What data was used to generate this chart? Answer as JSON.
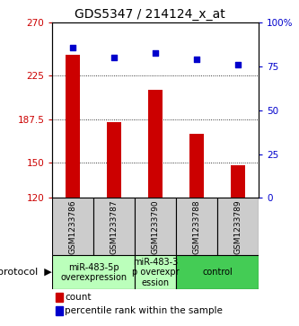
{
  "title": "GDS5347 / 214124_x_at",
  "samples": [
    "GSM1233786",
    "GSM1233787",
    "GSM1233790",
    "GSM1233788",
    "GSM1233789"
  ],
  "counts": [
    243,
    185,
    213,
    175,
    148
  ],
  "percentiles": [
    86,
    80,
    83,
    79,
    76
  ],
  "y_min": 120,
  "y_max": 270,
  "y_ticks": [
    120,
    150,
    187.5,
    225,
    270
  ],
  "y_tick_labels": [
    "120",
    "150",
    "187.5",
    "225",
    "270"
  ],
  "y2_ticks": [
    0,
    25,
    50,
    75,
    100
  ],
  "y2_tick_labels": [
    "0",
    "25",
    "50",
    "75",
    "100%"
  ],
  "bar_color": "#cc0000",
  "dot_color": "#0000cc",
  "sample_bg_color": "#cccccc",
  "legend_count_color": "#cc0000",
  "legend_pct_color": "#0000cc",
  "title_fontsize": 10,
  "tick_fontsize": 7.5,
  "sample_fontsize": 6.5,
  "protocol_fontsize": 7,
  "protocol_spans": [
    [
      0,
      1,
      "miR-483-5p\noverexpression",
      "#bbffbb"
    ],
    [
      2,
      2,
      "miR-483-3\np overexpr\nession",
      "#bbffbb"
    ],
    [
      3,
      4,
      "control",
      "#44cc55"
    ]
  ]
}
